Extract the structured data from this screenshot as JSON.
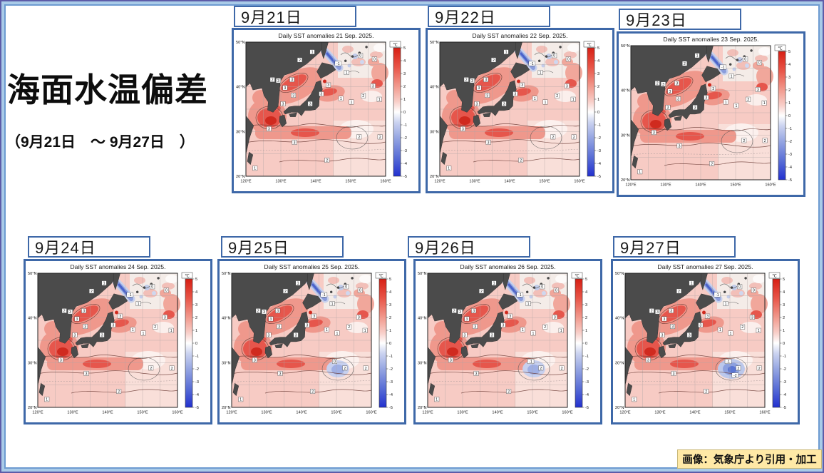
{
  "slide": {
    "title": "海面水温偏差",
    "subtitle": "（9月21日　～ 9月27日　）",
    "credit": "画像：気象庁より引用・加工"
  },
  "colors": {
    "panel_border_blue": "#3E68A8",
    "frame_light_blue": "#A9CBE8",
    "frame_purple_edge": "#5D5CA8",
    "badge_bg": "#FFE9A6",
    "land_gray": "#4B4B4B",
    "warm_anomaly_red": "#E6564C",
    "cold_anomaly_blue": "#4A63CC"
  },
  "map_common": {
    "unit": "℃",
    "colorbar_ticks": [
      "5",
      "4",
      "3",
      "2",
      "1",
      "0",
      "-1",
      "-2",
      "-3",
      "-4",
      "-5"
    ],
    "lat_labels": [
      "50°N",
      "40°N",
      "30°N",
      "20°N"
    ],
    "lon_labels": [
      "120°E",
      "130°E",
      "140°E",
      "150°E",
      "160°E"
    ],
    "contour_labels": [
      {
        "lon": 127.6,
        "lat": 41.6,
        "v": "2"
      },
      {
        "lon": 129.3,
        "lat": 41.4,
        "v": "3"
      },
      {
        "lon": 133.2,
        "lat": 41.6,
        "v": "3"
      },
      {
        "lon": 131.2,
        "lat": 39.8,
        "v": "3"
      },
      {
        "lon": 133.6,
        "lat": 38.1,
        "v": "3"
      },
      {
        "lon": 130.6,
        "lat": 36.2,
        "v": "3"
      },
      {
        "lon": 126.6,
        "lat": 30.6,
        "v": "3"
      },
      {
        "lon": 133.9,
        "lat": 27.6,
        "v": "3"
      },
      {
        "lon": 138.4,
        "lat": 36.2,
        "v": "3"
      },
      {
        "lon": 141.6,
        "lat": 38.4,
        "v": "3"
      },
      {
        "lon": 143.6,
        "lat": 40.4,
        "v": "3"
      },
      {
        "lon": 147.2,
        "lat": 37.4,
        "v": "1"
      },
      {
        "lon": 150.2,
        "lat": 36.6,
        "v": "1"
      },
      {
        "lon": 153.6,
        "lat": 38.0,
        "v": "2"
      },
      {
        "lon": 156.4,
        "lat": 40.2,
        "v": "3"
      },
      {
        "lon": 158.2,
        "lat": 37.2,
        "v": "1"
      },
      {
        "lon": 152.4,
        "lat": 28.8,
        "v": "2"
      },
      {
        "lon": 158.4,
        "lat": 28.8,
        "v": "2"
      },
      {
        "lon": 143.2,
        "lat": 23.6,
        "v": "2"
      },
      {
        "lon": 122.6,
        "lat": 21.8,
        "v": "1"
      },
      {
        "lon": 146.4,
        "lat": 45.2,
        "v": "-1"
      },
      {
        "lon": 152.8,
        "lat": 47.0,
        "v": "0"
      },
      {
        "lon": 156.8,
        "lat": 46.2,
        "v": "0"
      },
      {
        "lon": 148.8,
        "lat": 43.2,
        "v": "1"
      },
      {
        "lon": 135.4,
        "lat": 46.0,
        "v": "2"
      },
      {
        "lon": 139.0,
        "lat": 47.8,
        "v": "1"
      }
    ]
  },
  "panels": [
    {
      "date_label": "9月21日",
      "map_title": "Daily SST anomalies 21 Sep. 2025.",
      "se_anomaly": "none",
      "se_labels": []
    },
    {
      "date_label": "9月22日",
      "map_title": "Daily SST anomalies 22 Sep. 2025.",
      "se_anomaly": "none",
      "se_labels": []
    },
    {
      "date_label": "9月23日",
      "map_title": "Daily SST anomalies 23 Sep. 2025.",
      "se_anomaly": "none",
      "se_labels": []
    },
    {
      "date_label": "9月24日",
      "map_title": "Daily SST anomalies 24 Sep. 2025.",
      "se_anomaly": "none",
      "se_labels": []
    },
    {
      "date_label": "9月25日",
      "map_title": "Daily SST anomalies 25 Sep. 2025.",
      "se_anomaly": "weak",
      "se_labels": [
        "0"
      ]
    },
    {
      "date_label": "9月26日",
      "map_title": "Daily SST anomalies 26 Sep. 2025.",
      "se_anomaly": "weak",
      "se_labels": [
        "-1"
      ]
    },
    {
      "date_label": "9月27日",
      "map_title": "Daily SST anomalies 27 Sep. 2025.",
      "se_anomaly": "strong",
      "se_labels": [
        "-1",
        "-2"
      ]
    }
  ]
}
